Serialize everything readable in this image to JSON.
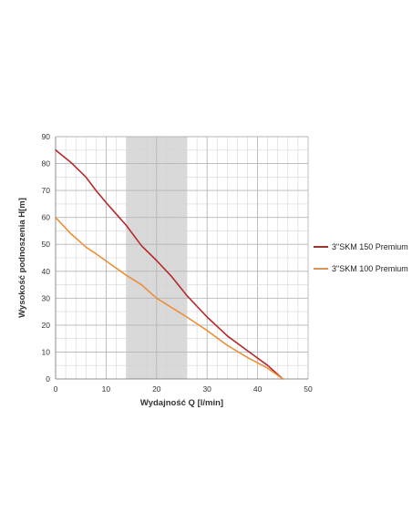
{
  "chart_data": {
    "type": "line",
    "title": "",
    "xlabel": "Wydajność Q [l/min]",
    "ylabel": "Wysokość podnoszenia H[m]",
    "xlim": [
      0,
      50
    ],
    "ylim": [
      0,
      90
    ],
    "x_ticks": [
      "0",
      "10",
      "20",
      "30",
      "40",
      "50"
    ],
    "y_ticks": [
      "0",
      "10",
      "20",
      "30",
      "40",
      "50",
      "60",
      "70",
      "80",
      "90"
    ],
    "grid": true,
    "highlight_band": {
      "x_from": 14,
      "x_to": 26,
      "color": "#d9d9d9"
    },
    "legend_position": "right",
    "series": [
      {
        "name": "3\"SKM 150 Premium",
        "color": "#b22a2a",
        "points": [
          [
            0,
            85
          ],
          [
            3,
            80.5
          ],
          [
            6,
            75
          ],
          [
            8,
            70
          ],
          [
            10,
            65.5
          ],
          [
            14,
            57
          ],
          [
            17,
            49.5
          ],
          [
            20,
            44
          ],
          [
            23,
            38
          ],
          [
            26,
            31
          ],
          [
            30,
            23
          ],
          [
            34,
            16
          ],
          [
            38,
            10.5
          ],
          [
            42,
            5
          ],
          [
            45,
            0
          ]
        ]
      },
      {
        "name": "3\"SKM 100 Premium",
        "color": "#eb8f3c",
        "points": [
          [
            0,
            60
          ],
          [
            3,
            54
          ],
          [
            6,
            49
          ],
          [
            8,
            46.5
          ],
          [
            11,
            42.5
          ],
          [
            14,
            38.5
          ],
          [
            17,
            35
          ],
          [
            20,
            30
          ],
          [
            23,
            26.5
          ],
          [
            26,
            23
          ],
          [
            30,
            18
          ],
          [
            34,
            12.5
          ],
          [
            38,
            8
          ],
          [
            42,
            4
          ],
          [
            45,
            0
          ]
        ]
      }
    ]
  }
}
